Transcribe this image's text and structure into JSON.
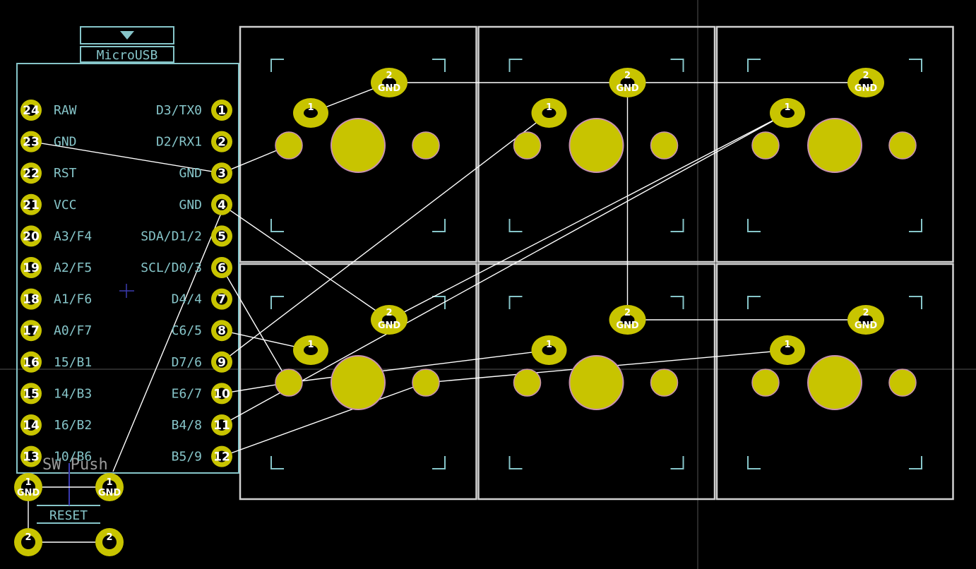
{
  "title": "",
  "microcontroller": {
    "usb_label": "MicroUSB",
    "left_pins": [
      {
        "num": "24",
        "label": "RAW"
      },
      {
        "num": "23",
        "label": "GND"
      },
      {
        "num": "22",
        "label": "RST"
      },
      {
        "num": "21",
        "label": "VCC"
      },
      {
        "num": "20",
        "label": "A3/F4"
      },
      {
        "num": "19",
        "label": "A2/F5"
      },
      {
        "num": "18",
        "label": "A1/F6"
      },
      {
        "num": "17",
        "label": "A0/F7"
      },
      {
        "num": "16",
        "label": "15/B1"
      },
      {
        "num": "15",
        "label": "14/B3"
      },
      {
        "num": "14",
        "label": "16/B2"
      },
      {
        "num": "13",
        "label": "10/B6"
      }
    ],
    "right_pins": [
      {
        "num": "1",
        "label": "D3/TX0"
      },
      {
        "num": "2",
        "label": "D2/RX1"
      },
      {
        "num": "3",
        "label": "GND"
      },
      {
        "num": "4",
        "label": "GND"
      },
      {
        "num": "5",
        "label": "SDA/D1/2"
      },
      {
        "num": "6",
        "label": "SCL/D0/3"
      },
      {
        "num": "7",
        "label": "D4/4"
      },
      {
        "num": "8",
        "label": "C6/5"
      },
      {
        "num": "9",
        "label": "D7/6"
      },
      {
        "num": "10",
        "label": "E6/7"
      },
      {
        "num": "11",
        "label": "B4/8"
      },
      {
        "num": "12",
        "label": "B5/9"
      }
    ]
  },
  "reset_switch": {
    "footprint_label": "SW_Push",
    "reference": "RESET",
    "pads": [
      {
        "num": "1",
        "net": "GND"
      },
      {
        "num": "1",
        "net": "GND"
      },
      {
        "num": "2",
        "net": ""
      },
      {
        "num": "2",
        "net": ""
      }
    ]
  },
  "key_switch": {
    "pad1_num": "1",
    "pad2_num": "2",
    "pad2_net": "GND",
    "grid_rows": 2,
    "grid_cols": 3
  },
  "colors": {
    "background": "#000000",
    "edge_cuts": "#d0d0d0",
    "silkscreen": "#86c5c9",
    "pad_fill": "#c8c400",
    "pad_outline": "#c892b0",
    "trace": "#ffffff",
    "crosshair": "#3a3ab0"
  }
}
